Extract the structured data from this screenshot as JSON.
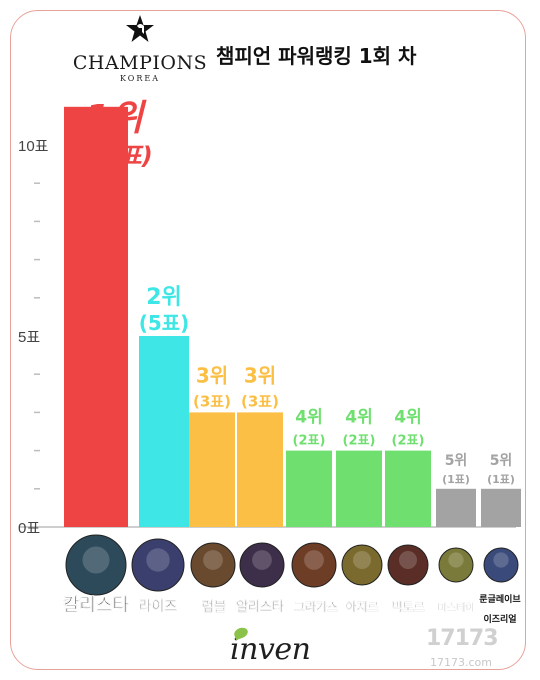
{
  "header": {
    "logo_text": "CHAMPIONS",
    "logo_sub": "KOREA",
    "title": "챔피언 파워랭킹 1회 차"
  },
  "footer": {
    "brand": "inven",
    "watermark_big": "17173",
    "watermark_small": "17173.com"
  },
  "colors": {
    "frame": "#e8a29b",
    "rank1": "#ef4444",
    "rank2": "#3ee6e6",
    "rank3": "#fbbf45",
    "rank4": "#6fe070",
    "rank5": "#a3a3a3",
    "axis": "#bdbdbd"
  },
  "chart_data": {
    "type": "bar",
    "title": "챔피언 파워랭킹 1회 차",
    "categories": [
      "칼리스타",
      "라이즈",
      "럼블",
      "알리스타",
      "그라가스",
      "아지르",
      "빅토르",
      "마스터이",
      "룬글레이브 이즈리얼"
    ],
    "values": [
      11,
      5,
      3,
      3,
      2,
      2,
      2,
      1,
      1
    ],
    "ranks": [
      "1위",
      "2위",
      "3위",
      "3위",
      "4위",
      "4위",
      "4위",
      "5위",
      "5위"
    ],
    "vote_labels": [
      "(11표)",
      "(5표)",
      "(3표)",
      "(3표)",
      "(2표)",
      "(2표)",
      "(2표)",
      "(1표)",
      "(1표)"
    ],
    "bar_colors": [
      "#ef4444",
      "#3ee6e6",
      "#fbbf45",
      "#fbbf45",
      "#6fe070",
      "#6fe070",
      "#6fe070",
      "#a3a3a3",
      "#a3a3a3"
    ],
    "ytick_labels": [
      {
        "value": 0,
        "label": "0표"
      },
      {
        "value": 5,
        "label": "5표"
      },
      {
        "value": 10,
        "label": "10표"
      }
    ],
    "ylim": [
      0,
      10
    ],
    "legend": "none",
    "grid": false,
    "icon_names": [
      "kalista-portrait",
      "ryze-portrait",
      "rumble-portrait",
      "alistar-portrait",
      "gragas-portrait",
      "azir-portrait",
      "viktor-portrait",
      "master-yi-portrait",
      "ezreal-portrait"
    ]
  }
}
